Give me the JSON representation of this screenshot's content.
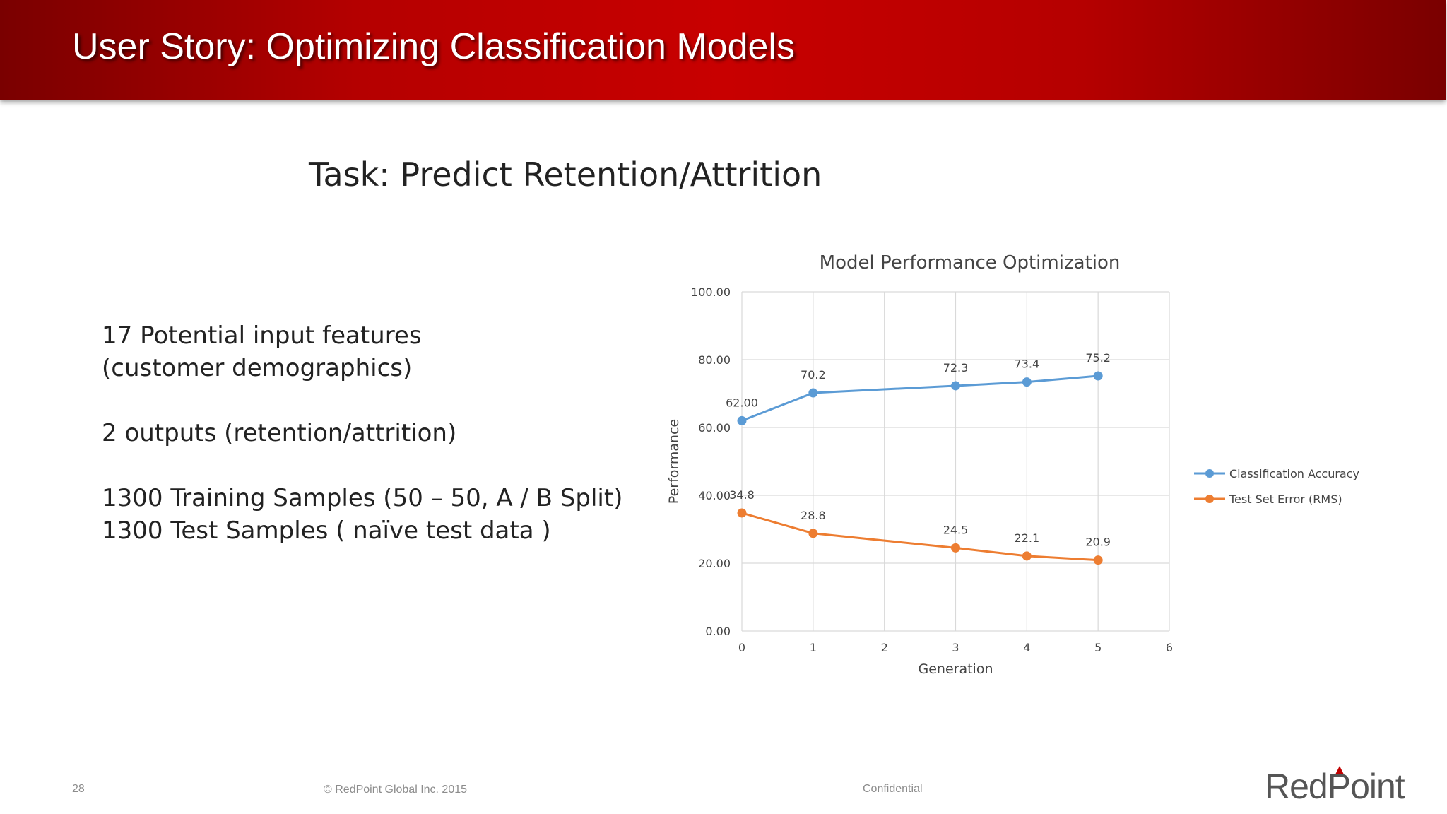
{
  "slide": {
    "title": "User Story: Optimizing Classification Models",
    "task": "Task: Predict Retention/Attrition",
    "bullets": [
      [
        "17 Potential input features",
        "(customer demographics)"
      ],
      [
        "2 outputs  (retention/attrition)"
      ],
      [
        "1300 Training Samples (50 – 50,  A / B Split)",
        "1300 Test Samples ( naïve test data )"
      ]
    ]
  },
  "footer": {
    "page_number": "28",
    "copyright": "© RedPoint Global Inc. 2015",
    "confidential": "Confidential",
    "logo": "RedPoint"
  },
  "colors": {
    "header_red": "#c00000",
    "series_blue": "#5b9bd5",
    "series_orange": "#ed7d31"
  },
  "chart_data": {
    "type": "line",
    "title": "Model Performance Optimization",
    "xlabel": "Generation",
    "ylabel": "Performance",
    "xlim": [
      0,
      6
    ],
    "ylim": [
      0,
      100
    ],
    "x_ticks": [
      "0",
      "1",
      "2",
      "3",
      "4",
      "5",
      "6"
    ],
    "y_ticks": [
      "0.00",
      "20.00",
      "40.00",
      "60.00",
      "80.00",
      "100.00"
    ],
    "grid": true,
    "legend_position": "right",
    "series": [
      {
        "name": "Classification Accuracy",
        "color": "#5b9bd5",
        "x": [
          0,
          1,
          3,
          4,
          5
        ],
        "y": [
          62.0,
          70.2,
          72.3,
          73.4,
          75.2
        ],
        "labels": [
          "62.00",
          "70.2",
          "72.3",
          "73.4",
          "75.2"
        ]
      },
      {
        "name": "Test Set Error (RMS)",
        "color": "#ed7d31",
        "x": [
          0,
          1,
          3,
          4,
          5
        ],
        "y": [
          34.8,
          28.8,
          24.5,
          22.1,
          20.9
        ],
        "labels": [
          "34.8",
          "28.8",
          "24.5",
          "22.1",
          "20.9"
        ]
      }
    ]
  }
}
